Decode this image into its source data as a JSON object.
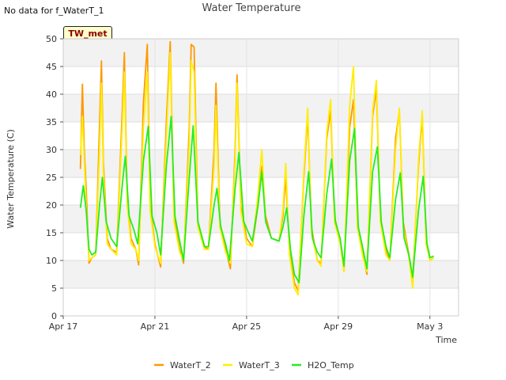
{
  "no_data_note": "No data for f_WaterT_1",
  "site_label": "TW_met",
  "chart_data": {
    "type": "line",
    "title": "Water Temperature",
    "xlabel": "Time",
    "ylabel": "Water Temperature (C)",
    "ylim": [
      0,
      50
    ],
    "yticks": [
      0,
      5,
      10,
      15,
      20,
      25,
      30,
      35,
      40,
      45,
      50
    ],
    "xlim": [
      "2024-04-17",
      "2024-05-04T06:00"
    ],
    "xticks": [
      {
        "date": "2024-04-17",
        "label": "Apr 17"
      },
      {
        "date": "2024-04-21",
        "label": "Apr 21"
      },
      {
        "date": "2024-04-25",
        "label": "Apr 25"
      },
      {
        "date": "2024-04-29",
        "label": "Apr 29"
      },
      {
        "date": "2024-05-03",
        "label": "May 3"
      }
    ],
    "grid": true,
    "legend_position": "bottom",
    "series": [
      {
        "name": "WaterT_2",
        "color": "#ff9900",
        "points": [
          [
            "2024-04-17T18:00",
            26.5
          ],
          [
            "2024-04-17T20:00",
            41.8
          ],
          [
            "2024-04-17T22:00",
            30
          ],
          [
            "2024-04-18T00:00",
            23
          ],
          [
            "2024-04-18T03:00",
            9.5
          ],
          [
            "2024-04-18T06:00",
            10.5
          ],
          [
            "2024-04-18T10:00",
            11
          ],
          [
            "2024-04-18T14:00",
            34.5
          ],
          [
            "2024-04-18T16:00",
            46
          ],
          [
            "2024-04-18T18:00",
            28
          ],
          [
            "2024-04-18T22:00",
            14
          ],
          [
            "2024-04-19T02:00",
            12
          ],
          [
            "2024-04-19T08:00",
            11.5
          ],
          [
            "2024-04-19T14:00",
            38
          ],
          [
            "2024-04-19T16:00",
            47.5
          ],
          [
            "2024-04-19T19:00",
            21
          ],
          [
            "2024-04-19T23:00",
            14
          ],
          [
            "2024-04-20T04:00",
            12
          ],
          [
            "2024-04-20T07:00",
            9.2
          ],
          [
            "2024-04-20T12:00",
            38.5
          ],
          [
            "2024-04-20T16:00",
            49
          ],
          [
            "2024-04-20T19:00",
            20
          ],
          [
            "2024-04-21T00:00",
            13
          ],
          [
            "2024-04-21T06:00",
            8.8
          ],
          [
            "2024-04-21T12:00",
            35
          ],
          [
            "2024-04-21T16:00",
            49.5
          ],
          [
            "2024-04-21T20:00",
            18
          ],
          [
            "2024-04-22T02:00",
            12
          ],
          [
            "2024-04-22T06:00",
            9.5
          ],
          [
            "2024-04-22T12:00",
            34
          ],
          [
            "2024-04-22T14:00",
            49
          ],
          [
            "2024-04-22T17:00",
            48.5
          ],
          [
            "2024-04-22T21:00",
            17
          ],
          [
            "2024-04-23T04:00",
            12.5
          ],
          [
            "2024-04-23T08:00",
            12
          ],
          [
            "2024-04-23T14:00",
            30
          ],
          [
            "2024-04-23T16:00",
            42
          ],
          [
            "2024-04-23T20:00",
            17
          ],
          [
            "2024-04-24T02:00",
            12
          ],
          [
            "2024-04-24T07:00",
            8.5
          ],
          [
            "2024-04-24T12:00",
            30
          ],
          [
            "2024-04-24T14:00",
            43.5
          ],
          [
            "2024-04-24T18:00",
            20
          ],
          [
            "2024-04-25T00:00",
            14
          ],
          [
            "2024-04-25T06:00",
            12.5
          ],
          [
            "2024-04-25T12:00",
            20
          ],
          [
            "2024-04-25T16:00",
            27
          ],
          [
            "2024-04-25T20:00",
            18
          ],
          [
            "2024-04-26T02:00",
            14
          ],
          [
            "2024-04-26T10:00",
            13.5
          ],
          [
            "2024-04-26T14:00",
            18
          ],
          [
            "2024-04-26T17:00",
            25
          ],
          [
            "2024-04-26T21:00",
            12
          ],
          [
            "2024-04-27T02:00",
            6
          ],
          [
            "2024-04-27T06:00",
            4.5
          ],
          [
            "2024-04-27T12:00",
            25
          ],
          [
            "2024-04-27T16:00",
            36
          ],
          [
            "2024-04-27T20:00",
            16
          ],
          [
            "2024-04-28T02:00",
            10
          ],
          [
            "2024-04-28T06:00",
            9.5
          ],
          [
            "2024-04-28T12:00",
            32
          ],
          [
            "2024-04-28T16:00",
            37
          ],
          [
            "2024-04-28T20:00",
            18
          ],
          [
            "2024-04-29T02:00",
            13.5
          ],
          [
            "2024-04-29T06:00",
            8
          ],
          [
            "2024-04-29T12:00",
            34
          ],
          [
            "2024-04-29T16:00",
            39
          ],
          [
            "2024-04-29T20:00",
            17
          ],
          [
            "2024-04-30T02:00",
            11
          ],
          [
            "2024-04-30T06:00",
            7.5
          ],
          [
            "2024-04-30T12:00",
            36
          ],
          [
            "2024-04-30T16:00",
            41
          ],
          [
            "2024-04-30T20:00",
            18
          ],
          [
            "2024-05-01T02:00",
            12
          ],
          [
            "2024-05-01T06:00",
            10
          ],
          [
            "2024-05-01T12:00",
            32
          ],
          [
            "2024-05-01T16:00",
            37
          ],
          [
            "2024-05-01T20:00",
            17
          ],
          [
            "2024-05-02T02:00",
            11
          ],
          [
            "2024-05-02T06:00",
            6.5
          ],
          [
            "2024-05-02T12:00",
            27
          ],
          [
            "2024-05-02T16:00",
            36
          ],
          [
            "2024-05-02T20:00",
            14
          ],
          [
            "2024-05-03T00:00",
            10
          ],
          [
            "2024-05-03T04:00",
            10.5
          ]
        ]
      },
      {
        "name": "WaterT_3",
        "color": "#ffee00",
        "points": [
          [
            "2024-04-17T18:00",
            29
          ],
          [
            "2024-04-17T20:00",
            36
          ],
          [
            "2024-04-17T22:00",
            28
          ],
          [
            "2024-04-18T00:00",
            20
          ],
          [
            "2024-04-18T03:00",
            10
          ],
          [
            "2024-04-18T06:00",
            10.5
          ],
          [
            "2024-04-18T10:00",
            11
          ],
          [
            "2024-04-18T14:00",
            30
          ],
          [
            "2024-04-18T16:00",
            42
          ],
          [
            "2024-04-18T18:00",
            26
          ],
          [
            "2024-04-18T22:00",
            13
          ],
          [
            "2024-04-19T02:00",
            12
          ],
          [
            "2024-04-19T08:00",
            11
          ],
          [
            "2024-04-19T14:00",
            35
          ],
          [
            "2024-04-19T16:00",
            44
          ],
          [
            "2024-04-19T19:00",
            20
          ],
          [
            "2024-04-19T23:00",
            13
          ],
          [
            "2024-04-20T04:00",
            12
          ],
          [
            "2024-04-20T07:00",
            10
          ],
          [
            "2024-04-20T12:00",
            34
          ],
          [
            "2024-04-20T16:00",
            44
          ],
          [
            "2024-04-20T19:00",
            19
          ],
          [
            "2024-04-21T00:00",
            12.5
          ],
          [
            "2024-04-21T06:00",
            9.5
          ],
          [
            "2024-04-21T12:00",
            32
          ],
          [
            "2024-04-21T16:00",
            47.5
          ],
          [
            "2024-04-21T20:00",
            17
          ],
          [
            "2024-04-22T02:00",
            11.5
          ],
          [
            "2024-04-22T06:00",
            10
          ],
          [
            "2024-04-22T12:00",
            31
          ],
          [
            "2024-04-22T14:00",
            46
          ],
          [
            "2024-04-22T17:00",
            44
          ],
          [
            "2024-04-22T21:00",
            16
          ],
          [
            "2024-04-23T04:00",
            12
          ],
          [
            "2024-04-23T08:00",
            12
          ],
          [
            "2024-04-23T14:00",
            27
          ],
          [
            "2024-04-23T16:00",
            38
          ],
          [
            "2024-04-23T20:00",
            16
          ],
          [
            "2024-04-24T02:00",
            11.5
          ],
          [
            "2024-04-24T07:00",
            9.5
          ],
          [
            "2024-04-24T12:00",
            28
          ],
          [
            "2024-04-24T14:00",
            42
          ],
          [
            "2024-04-24T18:00",
            19
          ],
          [
            "2024-04-25T00:00",
            13
          ],
          [
            "2024-04-25T06:00",
            12.5
          ],
          [
            "2024-04-25T12:00",
            22
          ],
          [
            "2024-04-25T16:00",
            30
          ],
          [
            "2024-04-25T20:00",
            17
          ],
          [
            "2024-04-26T02:00",
            14
          ],
          [
            "2024-04-26T10:00",
            13.5
          ],
          [
            "2024-04-26T14:00",
            19
          ],
          [
            "2024-04-26T17:00",
            27.5
          ],
          [
            "2024-04-26T21:00",
            11
          ],
          [
            "2024-04-27T02:00",
            5
          ],
          [
            "2024-04-27T06:00",
            3.8
          ],
          [
            "2024-04-27T12:00",
            26
          ],
          [
            "2024-04-27T16:00",
            37.5
          ],
          [
            "2024-04-27T20:00",
            15
          ],
          [
            "2024-04-28T02:00",
            10
          ],
          [
            "2024-04-28T06:00",
            9
          ],
          [
            "2024-04-28T12:00",
            33
          ],
          [
            "2024-04-28T16:00",
            39
          ],
          [
            "2024-04-28T20:00",
            17
          ],
          [
            "2024-04-29T02:00",
            13
          ],
          [
            "2024-04-29T06:00",
            8
          ],
          [
            "2024-04-29T12:00",
            38
          ],
          [
            "2024-04-29T16:00",
            45
          ],
          [
            "2024-04-29T20:00",
            16
          ],
          [
            "2024-04-30T02:00",
            10.5
          ],
          [
            "2024-04-30T06:00",
            8
          ],
          [
            "2024-04-30T12:00",
            37
          ],
          [
            "2024-04-30T16:00",
            42.5
          ],
          [
            "2024-04-30T20:00",
            17
          ],
          [
            "2024-05-01T02:00",
            11
          ],
          [
            "2024-05-01T06:00",
            10
          ],
          [
            "2024-05-01T12:00",
            30
          ],
          [
            "2024-05-01T16:00",
            37.5
          ],
          [
            "2024-05-01T20:00",
            16
          ],
          [
            "2024-05-02T02:00",
            10.5
          ],
          [
            "2024-05-02T06:00",
            5
          ],
          [
            "2024-05-02T12:00",
            28
          ],
          [
            "2024-05-02T16:00",
            37
          ],
          [
            "2024-05-02T20:00",
            13
          ],
          [
            "2024-05-03T00:00",
            10
          ],
          [
            "2024-05-03T04:00",
            10.5
          ]
        ]
      },
      {
        "name": "H2O_Temp",
        "color": "#22ee22",
        "points": [
          [
            "2024-04-17T18:00",
            19.5
          ],
          [
            "2024-04-17T21:00",
            23.5
          ],
          [
            "2024-04-18T00:00",
            19
          ],
          [
            "2024-04-18T03:00",
            12
          ],
          [
            "2024-04-18T06:00",
            11
          ],
          [
            "2024-04-18T10:00",
            11.5
          ],
          [
            "2024-04-18T14:00",
            20
          ],
          [
            "2024-04-18T17:00",
            25
          ],
          [
            "2024-04-18T21:00",
            17
          ],
          [
            "2024-04-19T02:00",
            14
          ],
          [
            "2024-04-19T08:00",
            12.5
          ],
          [
            "2024-04-19T14:00",
            24
          ],
          [
            "2024-04-19T17:00",
            28.8
          ],
          [
            "2024-04-19T21:00",
            18
          ],
          [
            "2024-04-20T02:00",
            15.5
          ],
          [
            "2024-04-20T06:00",
            13
          ],
          [
            "2024-04-20T12:00",
            28
          ],
          [
            "2024-04-20T17:00",
            34.2
          ],
          [
            "2024-04-20T21:00",
            18
          ],
          [
            "2024-04-21T02:00",
            15
          ],
          [
            "2024-04-21T06:00",
            11
          ],
          [
            "2024-04-21T12:00",
            27
          ],
          [
            "2024-04-21T17:00",
            36
          ],
          [
            "2024-04-21T21:00",
            18
          ],
          [
            "2024-04-22T02:00",
            13.5
          ],
          [
            "2024-04-22T06:00",
            10
          ],
          [
            "2024-04-22T12:00",
            25
          ],
          [
            "2024-04-22T16:00",
            34.3
          ],
          [
            "2024-04-22T21:00",
            17
          ],
          [
            "2024-04-23T04:00",
            12.5
          ],
          [
            "2024-04-23T08:00",
            12.5
          ],
          [
            "2024-04-23T14:00",
            20
          ],
          [
            "2024-04-23T17:00",
            23
          ],
          [
            "2024-04-23T21:00",
            16
          ],
          [
            "2024-04-24T02:00",
            13
          ],
          [
            "2024-04-24T06:00",
            10
          ],
          [
            "2024-04-24T12:00",
            23
          ],
          [
            "2024-04-24T16:00",
            29.5
          ],
          [
            "2024-04-24T21:00",
            17
          ],
          [
            "2024-04-25T02:00",
            15
          ],
          [
            "2024-04-25T06:00",
            13.5
          ],
          [
            "2024-04-25T12:00",
            20
          ],
          [
            "2024-04-25T16:00",
            26
          ],
          [
            "2024-04-25T20:00",
            17
          ],
          [
            "2024-04-26T02:00",
            14
          ],
          [
            "2024-04-26T10:00",
            13.5
          ],
          [
            "2024-04-26T14:00",
            16
          ],
          [
            "2024-04-26T18:00",
            19.5
          ],
          [
            "2024-04-26T22:00",
            12
          ],
          [
            "2024-04-27T02:00",
            7.5
          ],
          [
            "2024-04-27T07:00",
            6
          ],
          [
            "2024-04-27T12:00",
            18
          ],
          [
            "2024-04-27T17:00",
            26
          ],
          [
            "2024-04-27T21:00",
            14
          ],
          [
            "2024-04-28T02:00",
            11.5
          ],
          [
            "2024-04-28T06:00",
            10.5
          ],
          [
            "2024-04-28T12:00",
            22
          ],
          [
            "2024-04-28T17:00",
            28.3
          ],
          [
            "2024-04-28T21:00",
            17
          ],
          [
            "2024-04-29T02:00",
            14
          ],
          [
            "2024-04-29T06:00",
            9
          ],
          [
            "2024-04-29T12:00",
            28
          ],
          [
            "2024-04-29T17:00",
            33.8
          ],
          [
            "2024-04-29T21:00",
            16
          ],
          [
            "2024-04-30T02:00",
            12
          ],
          [
            "2024-04-30T06:00",
            8.5
          ],
          [
            "2024-04-30T12:00",
            26
          ],
          [
            "2024-04-30T17:00",
            30.5
          ],
          [
            "2024-04-30T21:00",
            17
          ],
          [
            "2024-05-01T02:00",
            12.5
          ],
          [
            "2024-05-01T06:00",
            10.5
          ],
          [
            "2024-05-01T12:00",
            21
          ],
          [
            "2024-05-01T17:00",
            25.8
          ],
          [
            "2024-05-01T21:00",
            14
          ],
          [
            "2024-05-02T02:00",
            11
          ],
          [
            "2024-05-02T06:00",
            7
          ],
          [
            "2024-05-02T12:00",
            19
          ],
          [
            "2024-05-02T17:00",
            25.2
          ],
          [
            "2024-05-02T21:00",
            13
          ],
          [
            "2024-05-03T00:00",
            10.5
          ],
          [
            "2024-05-03T04:00",
            10.8
          ]
        ]
      }
    ]
  }
}
